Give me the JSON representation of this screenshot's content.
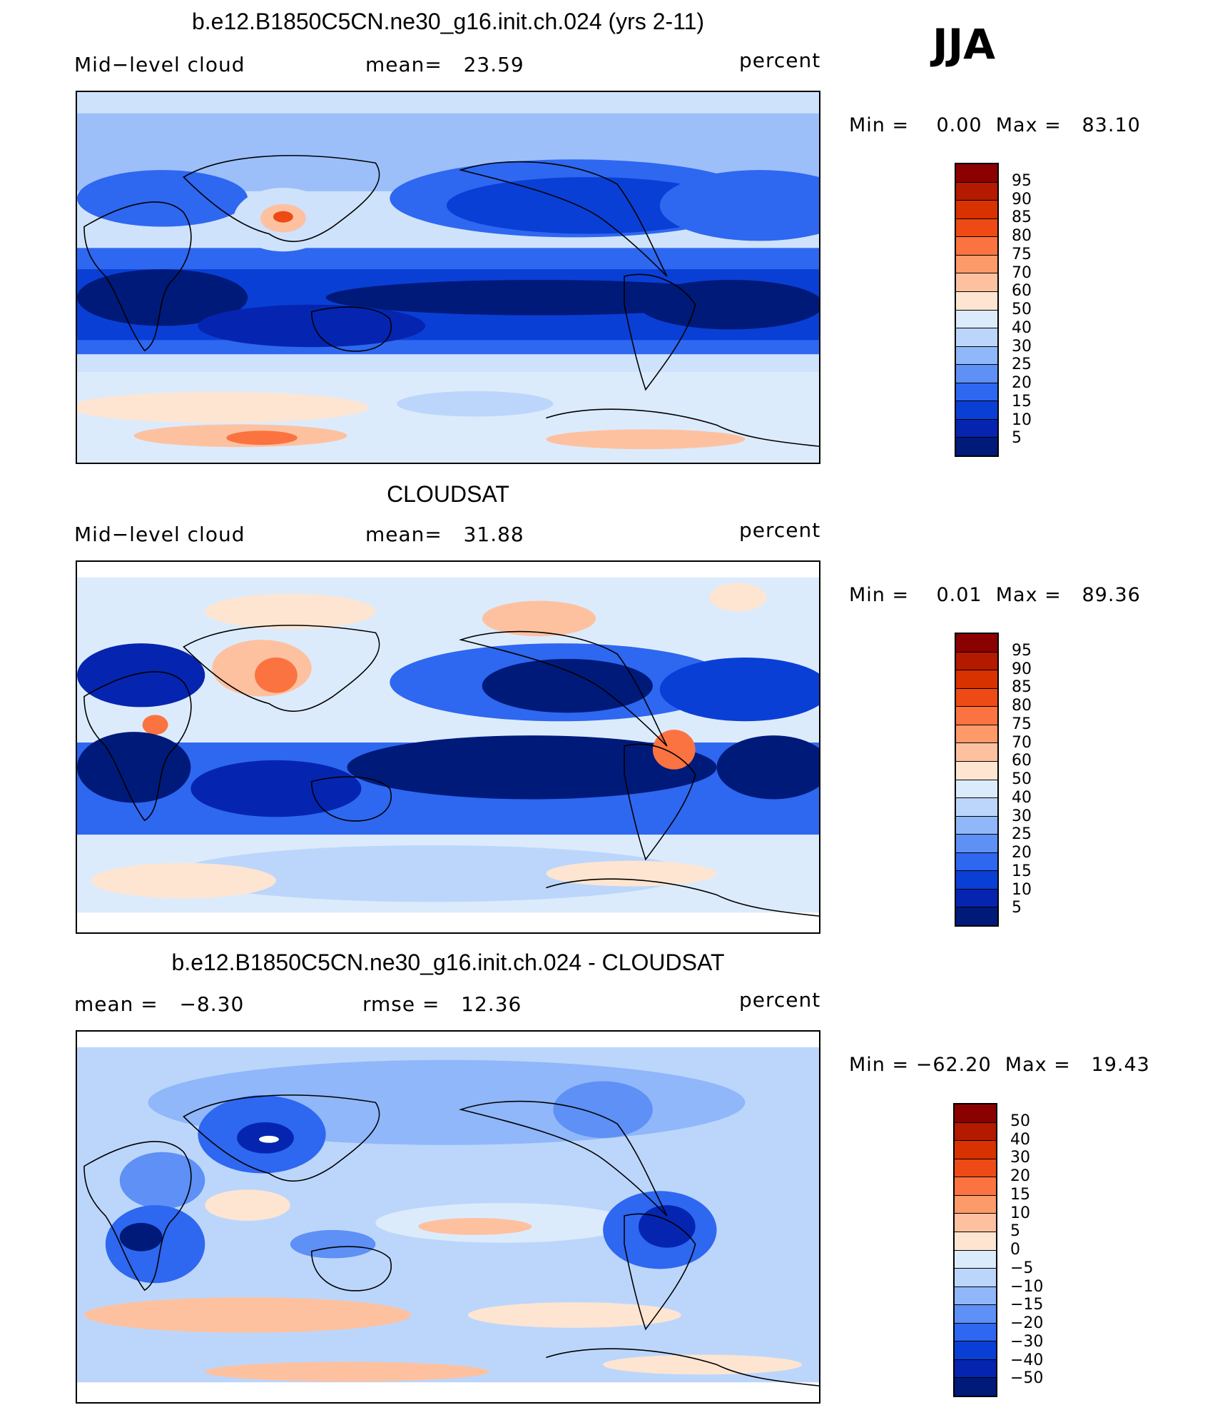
{
  "season": "JJA",
  "panels": [
    {
      "title": "b.e12.B1850C5CN.ne30_g16.init.ch.024 (yrs 2-11)",
      "left_label": "Mid−level cloud",
      "center_label": "mean=   23.59",
      "units": "percent",
      "minmax": "Min =    0.00  Max =   83.10",
      "levels": [
        "95",
        "90",
        "85",
        "80",
        "75",
        "70",
        "60",
        "50",
        "40",
        "30",
        "25",
        "20",
        "15",
        "10",
        "5"
      ],
      "colors": [
        "#8b0000",
        "#b31a00",
        "#d83200",
        "#ee4a16",
        "#fb7340",
        "#fd9a6a",
        "#fdc1a0",
        "#fde5d2",
        "#dcebfc",
        "#bcd6fb",
        "#8fb7fa",
        "#5e90f5",
        "#2e67f0",
        "#0a3fd6",
        "#0525b0",
        "#001a7a"
      ]
    },
    {
      "title": "CLOUDSAT",
      "left_label": "Mid−level cloud",
      "center_label": "mean=   31.88",
      "units": "percent",
      "minmax": "Min =    0.01  Max =   89.36",
      "levels": [
        "95",
        "90",
        "85",
        "80",
        "75",
        "70",
        "60",
        "50",
        "40",
        "30",
        "25",
        "20",
        "15",
        "10",
        "5"
      ],
      "colors": [
        "#8b0000",
        "#b31a00",
        "#d83200",
        "#ee4a16",
        "#fb7340",
        "#fd9a6a",
        "#fdc1a0",
        "#fde5d2",
        "#dcebfc",
        "#bcd6fb",
        "#8fb7fa",
        "#5e90f5",
        "#2e67f0",
        "#0a3fd6",
        "#0525b0",
        "#001a7a"
      ]
    },
    {
      "title": "b.e12.B1850C5CN.ne30_g16.init.ch.024 - CLOUDSAT",
      "left_label": "mean =   −8.30",
      "center_label": "rmse =   12.36",
      "units": "percent",
      "minmax": "Min = −62.20  Max =   19.43",
      "levels": [
        "50",
        "40",
        "30",
        "20",
        "15",
        "10",
        "5",
        "0",
        "−5",
        "−10",
        "−15",
        "−20",
        "−30",
        "−40",
        "−50"
      ],
      "colors": [
        "#8b0000",
        "#b31a00",
        "#d83200",
        "#ee4a16",
        "#fb7340",
        "#fd9a6a",
        "#fdc1a0",
        "#fde5d2",
        "#dcebfc",
        "#bcd6fb",
        "#8fb7fa",
        "#5e90f5",
        "#2e67f0",
        "#0a3fd6",
        "#0525b0",
        "#001a7a"
      ]
    }
  ]
}
